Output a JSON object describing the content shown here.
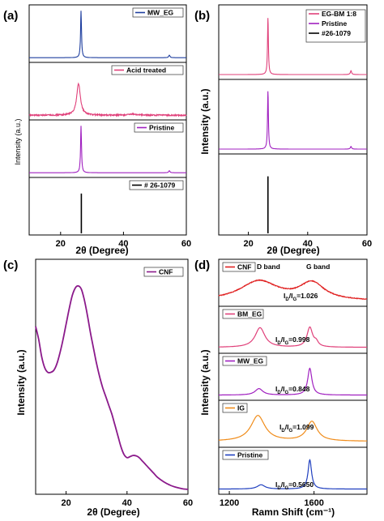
{
  "figure": {
    "panels": [
      "(a)",
      "(b)",
      "(c)",
      "(d)"
    ]
  },
  "chart_data": [
    {
      "panel": "(a)",
      "type": "line",
      "xlabel": "2θ (Degree)",
      "ylabel": "Intensity (a.u.)",
      "xlim": [
        10,
        60
      ],
      "xticks": [
        20,
        40,
        60
      ],
      "layout": "stacked",
      "series": [
        {
          "name": "MW_EG",
          "color": "#1f3f9f",
          "kind": "line",
          "base": 0.06,
          "peaks": [
            {
              "x": 26.5,
              "h": 0.92,
              "w": 0.18
            },
            {
              "x": 54.6,
              "h": 0.05,
              "w": 0.25
            }
          ]
        },
        {
          "name": "Acid treated",
          "color": "#e0407a",
          "kind": "line",
          "base": 0.06,
          "noise": 0.012,
          "peaks": [
            {
              "x": 25.7,
              "h": 0.62,
              "w": 0.7
            },
            {
              "x": 43,
              "h": 0.02,
              "w": 1.5
            }
          ]
        },
        {
          "name": "Pristine",
          "color": "#a020c0",
          "kind": "line",
          "base": 0.06,
          "peaks": [
            {
              "x": 26.5,
              "h": 0.92,
              "w": 0.18
            },
            {
              "x": 54.6,
              "h": 0.04,
              "w": 0.25
            }
          ]
        },
        {
          "name": "# 26-1079",
          "color": "#000000",
          "kind": "stick",
          "sticks": [
            {
              "x": 26.6,
              "h": 0.78
            }
          ]
        }
      ]
    },
    {
      "panel": "(b)",
      "type": "line",
      "xlabel": "2θ (Degree)",
      "ylabel": "Intensity (a.u.)",
      "xlim": [
        10,
        60
      ],
      "xticks": [
        20,
        40,
        60
      ],
      "layout": "stacked",
      "legend": "top-right",
      "series": [
        {
          "name": "EG-BM 1:8",
          "color": "#e0407a",
          "kind": "line",
          "base": 0.05,
          "peaks": [
            {
              "x": 26.6,
              "h": 0.88,
              "w": 0.18
            },
            {
              "x": 54.6,
              "h": 0.06,
              "w": 0.25
            }
          ]
        },
        {
          "name": "Pristine",
          "color": "#a020c0",
          "kind": "line",
          "base": 0.05,
          "peaks": [
            {
              "x": 26.6,
              "h": 0.9,
              "w": 0.18
            },
            {
              "x": 54.6,
              "h": 0.04,
              "w": 0.25
            }
          ]
        },
        {
          "name": "#26-1079",
          "color": "#000000",
          "kind": "stick",
          "sticks": [
            {
              "x": 26.6,
              "h": 0.8
            }
          ]
        }
      ]
    },
    {
      "panel": "(c)",
      "type": "line",
      "xlabel": "2θ (Degree)",
      "ylabel": "Intensity (a.u.)",
      "xlim": [
        10,
        60
      ],
      "xticks": [
        20,
        40,
        60
      ],
      "legend": "top-right",
      "series": [
        {
          "name": "CNF",
          "color": "#8b1a8b",
          "kind": "line",
          "points": [
            [
              10,
              0.76
            ],
            [
              11,
              0.7
            ],
            [
              12,
              0.62
            ],
            [
              13,
              0.57
            ],
            [
              14,
              0.55
            ],
            [
              15,
              0.55
            ],
            [
              16,
              0.56
            ],
            [
              17,
              0.59
            ],
            [
              18,
              0.64
            ],
            [
              19,
              0.7
            ],
            [
              20,
              0.77
            ],
            [
              21,
              0.84
            ],
            [
              22,
              0.9
            ],
            [
              23,
              0.935
            ],
            [
              24,
              0.945
            ],
            [
              25,
              0.93
            ],
            [
              26,
              0.88
            ],
            [
              27,
              0.81
            ],
            [
              28,
              0.73
            ],
            [
              29,
              0.66
            ],
            [
              30,
              0.59
            ],
            [
              31,
              0.53
            ],
            [
              32,
              0.48
            ],
            [
              33,
              0.44
            ],
            [
              34,
              0.4
            ],
            [
              35,
              0.36
            ],
            [
              36,
              0.31
            ],
            [
              37,
              0.26
            ],
            [
              38,
              0.21
            ],
            [
              39,
              0.175
            ],
            [
              40,
              0.16
            ],
            [
              41,
              0.165
            ],
            [
              42,
              0.17
            ],
            [
              43,
              0.168
            ],
            [
              44,
              0.16
            ],
            [
              45,
              0.145
            ],
            [
              46,
              0.13
            ],
            [
              47,
              0.115
            ],
            [
              48,
              0.1
            ],
            [
              49,
              0.085
            ],
            [
              50,
              0.07
            ],
            [
              52,
              0.05
            ],
            [
              54,
              0.035
            ],
            [
              56,
              0.025
            ],
            [
              58,
              0.018
            ],
            [
              60,
              0.015
            ]
          ]
        }
      ]
    },
    {
      "panel": "(d)",
      "type": "line",
      "xlabel": "Ramn Shift (cm⁻¹)",
      "ylabel": "Intensity (a.u.)",
      "xlim": [
        1150,
        1850
      ],
      "xticks": [
        1200,
        1600
      ],
      "layout": "stacked",
      "series": [
        {
          "name": "CNF",
          "color": "#e02020",
          "kind": "line",
          "base": 0.1,
          "noise": 0.01,
          "ratio": "1.026",
          "peaks": [
            {
              "x": 1340,
              "h": 0.55,
              "w": 110
            },
            {
              "x": 1590,
              "h": 0.48,
              "w": 70
            }
          ]
        },
        {
          "name": "BM_EG",
          "color": "#e0407a",
          "kind": "line",
          "base": 0.12,
          "ratio": "0.998",
          "peaks": [
            {
              "x": 1345,
              "h": 0.55,
              "w": 28
            },
            {
              "x": 1580,
              "h": 0.55,
              "w": 16
            },
            {
              "x": 1610,
              "h": 0.12,
              "w": 12
            }
          ]
        },
        {
          "name": "MW_EG",
          "color": "#a020c0",
          "kind": "line",
          "base": 0.1,
          "ratio": "0.848",
          "peaks": [
            {
              "x": 1340,
              "h": 0.18,
              "w": 22
            },
            {
              "x": 1580,
              "h": 0.75,
              "w": 12
            }
          ]
        },
        {
          "name": "IG",
          "color": "#f08c1a",
          "kind": "line",
          "base": 0.12,
          "ratio": "1.099",
          "peaks": [
            {
              "x": 1335,
              "h": 0.72,
              "w": 40
            },
            {
              "x": 1590,
              "h": 0.55,
              "w": 30
            }
          ]
        },
        {
          "name": "Pristine",
          "color": "#1f3fbf",
          "kind": "line",
          "base": 0.1,
          "ratio": "0.5650",
          "peaks": [
            {
              "x": 1350,
              "h": 0.12,
              "w": 22
            },
            {
              "x": 1580,
              "h": 0.82,
              "w": 10
            }
          ]
        }
      ],
      "annotations": {
        "d_band": "D band",
        "g_band": "G band",
        "ratio_prefix": "I",
        "ratio_sub": "D",
        "ratio_mid": "/I",
        "ratio_sub2": "G",
        "ratio_eq": "="
      }
    }
  ]
}
